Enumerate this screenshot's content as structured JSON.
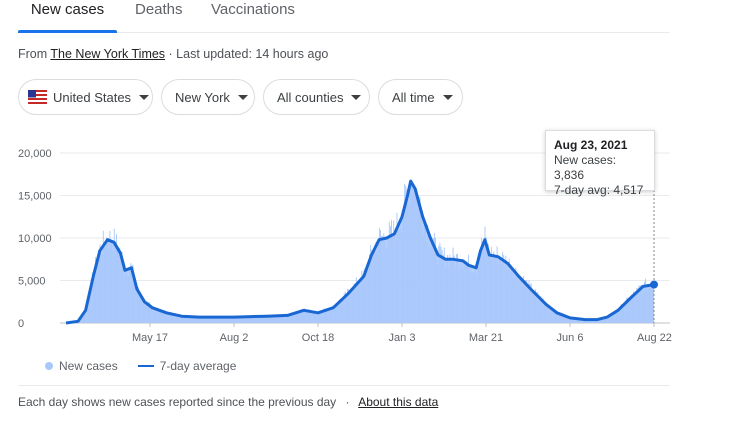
{
  "tabs": [
    {
      "label": "New cases",
      "active": true
    },
    {
      "label": "Deaths"
    },
    {
      "label": "Vaccinations"
    }
  ],
  "source": {
    "prefix": "From ",
    "link": "The New York Times",
    "updated": " · Last updated: 14 hours ago"
  },
  "filters": {
    "country": "United States",
    "state": "New York",
    "county": "All counties",
    "range": "All time"
  },
  "tooltip": {
    "date": "Aug 23, 2021",
    "new_cases": "New cases: 3,836",
    "avg": "7-day avg: 4,517"
  },
  "legend": {
    "new_cases": "New cases",
    "avg": "7-day average"
  },
  "footer": {
    "text": "Each day shows new cases reported since the previous day",
    "sep": "·",
    "link": "About this data"
  },
  "colors": {
    "bars": "#a8c7fa",
    "line": "#1967d2",
    "accent": "#1a73e8"
  },
  "chart_data": {
    "type": "area",
    "title": "",
    "ylim": [
      0,
      20000
    ],
    "y_ticks": [
      {
        "value": 0,
        "label": "0"
      },
      {
        "value": 5000,
        "label": "5,000"
      },
      {
        "value": 10000,
        "label": "10,000"
      },
      {
        "value": 15000,
        "label": "15,000"
      },
      {
        "value": 20000,
        "label": "20,000"
      }
    ],
    "x_ticks": [
      "May 17",
      "Aug 2",
      "Oct 18",
      "Jan 3",
      "Mar 21",
      "Jun 6",
      "Aug 22"
    ],
    "series": [
      {
        "name": "7-day average",
        "points": [
          [
            "2020-03-01",
            0
          ],
          [
            "2020-03-12",
            200
          ],
          [
            "2020-03-19",
            1500
          ],
          [
            "2020-03-26",
            5500
          ],
          [
            "2020-04-01",
            8500
          ],
          [
            "2020-04-08",
            9800
          ],
          [
            "2020-04-14",
            9500
          ],
          [
            "2020-04-20",
            8200
          ],
          [
            "2020-04-24",
            6200
          ],
          [
            "2020-04-30",
            6500
          ],
          [
            "2020-05-05",
            4000
          ],
          [
            "2020-05-12",
            2500
          ],
          [
            "2020-05-19",
            1800
          ],
          [
            "2020-06-01",
            1200
          ],
          [
            "2020-06-15",
            800
          ],
          [
            "2020-07-01",
            700
          ],
          [
            "2020-08-02",
            700
          ],
          [
            "2020-09-01",
            800
          ],
          [
            "2020-09-20",
            900
          ],
          [
            "2020-10-05",
            1500
          ],
          [
            "2020-10-18",
            1200
          ],
          [
            "2020-11-01",
            1800
          ],
          [
            "2020-11-15",
            3500
          ],
          [
            "2020-11-29",
            5500
          ],
          [
            "2020-12-06",
            8000
          ],
          [
            "2020-12-13",
            9800
          ],
          [
            "2020-12-20",
            10000
          ],
          [
            "2020-12-27",
            10500
          ],
          [
            "2021-01-03",
            12500
          ],
          [
            "2021-01-08",
            15000
          ],
          [
            "2021-01-11",
            16700
          ],
          [
            "2021-01-15",
            15800
          ],
          [
            "2021-01-22",
            12500
          ],
          [
            "2021-01-29",
            10000
          ],
          [
            "2021-02-05",
            8000
          ],
          [
            "2021-02-12",
            7500
          ],
          [
            "2021-02-19",
            7500
          ],
          [
            "2021-02-28",
            7300
          ],
          [
            "2021-03-05",
            6800
          ],
          [
            "2021-03-12",
            6500
          ],
          [
            "2021-03-16",
            8500
          ],
          [
            "2021-03-20",
            9800
          ],
          [
            "2021-03-24",
            8000
          ],
          [
            "2021-04-01",
            7800
          ],
          [
            "2021-04-10",
            7000
          ],
          [
            "2021-04-20",
            5500
          ],
          [
            "2021-05-01",
            4000
          ],
          [
            "2021-05-15",
            2200
          ],
          [
            "2021-05-25",
            1200
          ],
          [
            "2021-06-06",
            600
          ],
          [
            "2021-06-20",
            400
          ],
          [
            "2021-07-01",
            400
          ],
          [
            "2021-07-10",
            700
          ],
          [
            "2021-07-20",
            1500
          ],
          [
            "2021-08-01",
            3000
          ],
          [
            "2021-08-12",
            4300
          ],
          [
            "2021-08-22",
            4517
          ]
        ]
      }
    ]
  }
}
